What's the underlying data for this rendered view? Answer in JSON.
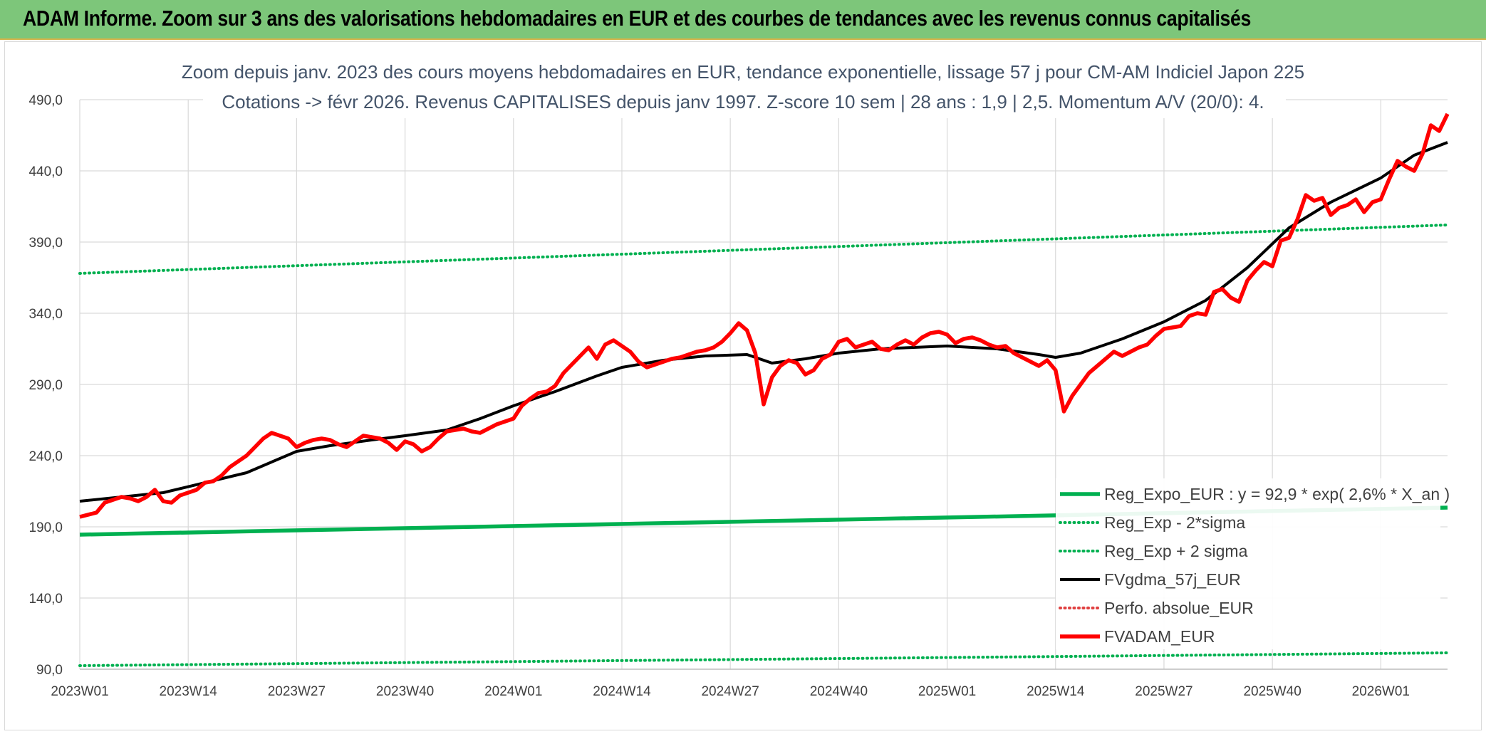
{
  "header": {
    "title": "ADAM Informe. Zoom sur 3 ans des valorisations hebdomadaires en EUR et des courbes de tendances avec les revenus connus capitalisés"
  },
  "chart_data": {
    "type": "line",
    "title": [
      "Zoom depuis janv. 2023 des cours moyens hebdomadaires en EUR, tendance exponentielle, lissage 57 j pour CM-AM Indiciel Japon 225",
      "Cotations -> févr 2026. Revenus CAPITALISES depuis janv 1997. Z-score 10 sem | 28 ans : 1,9 | 2,5. Momentum A/V (20/0): 4."
    ],
    "x_tick_labels": [
      "2023W01",
      "2023W14",
      "2023W27",
      "2023W40",
      "2024W01",
      "2024W14",
      "2024W27",
      "2024W40",
      "2025W01",
      "2025W14",
      "2025W27",
      "2025W40",
      "2026W01"
    ],
    "x_tick_week_index": [
      0,
      13,
      26,
      39,
      52,
      65,
      78,
      91,
      104,
      117,
      130,
      143,
      156
    ],
    "x_range": [
      0,
      164
    ],
    "y_tick_labels": [
      "90,0",
      "140,0",
      "190,0",
      "240,0",
      "290,0",
      "340,0",
      "390,0",
      "440,0",
      "490,0"
    ],
    "ylim": [
      90,
      490
    ],
    "grid": true,
    "legend_position": "bottom-right",
    "colors": {
      "green": "#00b050",
      "black": "#000000",
      "red": "#ff0000",
      "red_dotted": "#e04040",
      "grid": "#d9d9d9",
      "axis": "#bfbfbf"
    },
    "series": [
      {
        "name": "Reg_Expo_EUR : y = 92,9 * exp( 2,6% *  X_an )",
        "style": "solid-thick",
        "color": "green",
        "x": [
          0,
          164
        ],
        "y": [
          184.5,
          203.5
        ]
      },
      {
        "name": "Reg_Exp - 2*sigma",
        "style": "dotted",
        "color": "green",
        "x": [
          0,
          164
        ],
        "y": [
          92.5,
          101.5
        ]
      },
      {
        "name": "Reg_Exp + 2 sigma",
        "style": "dotted",
        "color": "green",
        "x": [
          0,
          164
        ],
        "y": [
          368,
          402
        ]
      },
      {
        "name": "FVgdma_57j_EUR",
        "style": "solid",
        "color": "black",
        "x": [
          0,
          10,
          20,
          26,
          30,
          35,
          39,
          44,
          48,
          52,
          57,
          62,
          65,
          70,
          75,
          80,
          83,
          87,
          91,
          96,
          100,
          104,
          110,
          115,
          117,
          120,
          125,
          130,
          135,
          140,
          145,
          150,
          156,
          160,
          164
        ],
        "y": [
          208,
          214,
          228,
          243,
          247,
          251,
          254,
          258,
          266,
          275,
          285,
          296,
          302,
          307,
          310,
          311,
          305,
          308,
          312,
          315,
          316,
          317,
          315,
          311,
          309,
          312,
          322,
          334,
          349,
          372,
          400,
          418,
          435,
          451,
          460
        ]
      },
      {
        "name": "Perfo. absolue_EUR",
        "style": "dotted",
        "color": "red_dotted",
        "x": [],
        "y": []
      },
      {
        "name": "FVADAM_EUR",
        "style": "solid-thick",
        "color": "red",
        "x": [
          0,
          2,
          3,
          4,
          5,
          6,
          7,
          8,
          9,
          10,
          11,
          12,
          13,
          14,
          15,
          16,
          17,
          18,
          19,
          20,
          21,
          22,
          23,
          24,
          25,
          26,
          27,
          28,
          29,
          30,
          31,
          32,
          33,
          34,
          35,
          36,
          37,
          38,
          39,
          40,
          41,
          42,
          43,
          44,
          45,
          46,
          47,
          48,
          49,
          50,
          51,
          52,
          53,
          54,
          55,
          56,
          57,
          58,
          59,
          60,
          61,
          62,
          63,
          64,
          65,
          66,
          67,
          68,
          69,
          70,
          71,
          72,
          73,
          74,
          75,
          76,
          77,
          78,
          79,
          80,
          81,
          82,
          83,
          84,
          85,
          86,
          87,
          88,
          89,
          90,
          91,
          92,
          93,
          94,
          95,
          96,
          97,
          98,
          99,
          100,
          101,
          102,
          103,
          104,
          105,
          106,
          107,
          108,
          109,
          110,
          111,
          112,
          113,
          114,
          115,
          116,
          117,
          118,
          119,
          120,
          121,
          122,
          123,
          124,
          125,
          126,
          127,
          128,
          129,
          130,
          131,
          132,
          133,
          134,
          135,
          136,
          137,
          138,
          139,
          140,
          141,
          142,
          143,
          144,
          145,
          146,
          147,
          148,
          149,
          150,
          151,
          152,
          153,
          154,
          155,
          156,
          157,
          158,
          159,
          160,
          161,
          162,
          163,
          164
        ],
        "y": [
          197,
          200,
          207,
          209,
          211,
          210,
          208,
          211,
          216,
          208,
          207,
          212,
          214,
          216,
          221,
          222,
          226,
          232,
          236,
          240,
          246,
          252,
          256,
          254,
          252,
          246,
          249,
          251,
          252,
          251,
          248,
          246,
          250,
          254,
          253,
          252,
          249,
          244,
          250,
          248,
          243,
          246,
          252,
          257,
          258,
          259,
          257,
          256,
          259,
          262,
          264,
          266,
          275,
          280,
          284,
          285,
          289,
          298,
          304,
          310,
          316,
          308,
          318,
          321,
          317,
          313,
          306,
          302,
          304,
          306,
          308,
          309,
          311,
          313,
          314,
          316,
          320,
          326,
          333,
          328,
          312,
          276,
          295,
          303,
          307,
          305,
          297,
          300,
          308,
          311,
          320,
          322,
          316,
          318,
          320,
          315,
          314,
          318,
          321,
          318,
          323,
          326,
          327,
          325,
          319,
          322,
          323,
          321,
          318,
          316,
          317,
          312,
          309,
          306,
          303,
          307,
          300,
          271,
          282,
          290,
          298,
          303,
          308,
          313,
          310,
          313,
          316,
          318,
          324,
          329,
          330,
          331,
          338,
          340,
          339,
          355,
          357,
          351,
          348,
          363,
          370,
          376,
          373,
          391,
          393,
          406,
          423,
          419,
          421,
          409,
          414,
          416,
          420,
          411,
          418,
          420,
          434,
          447,
          443,
          440,
          452,
          472,
          468,
          480
        ]
      }
    ]
  }
}
